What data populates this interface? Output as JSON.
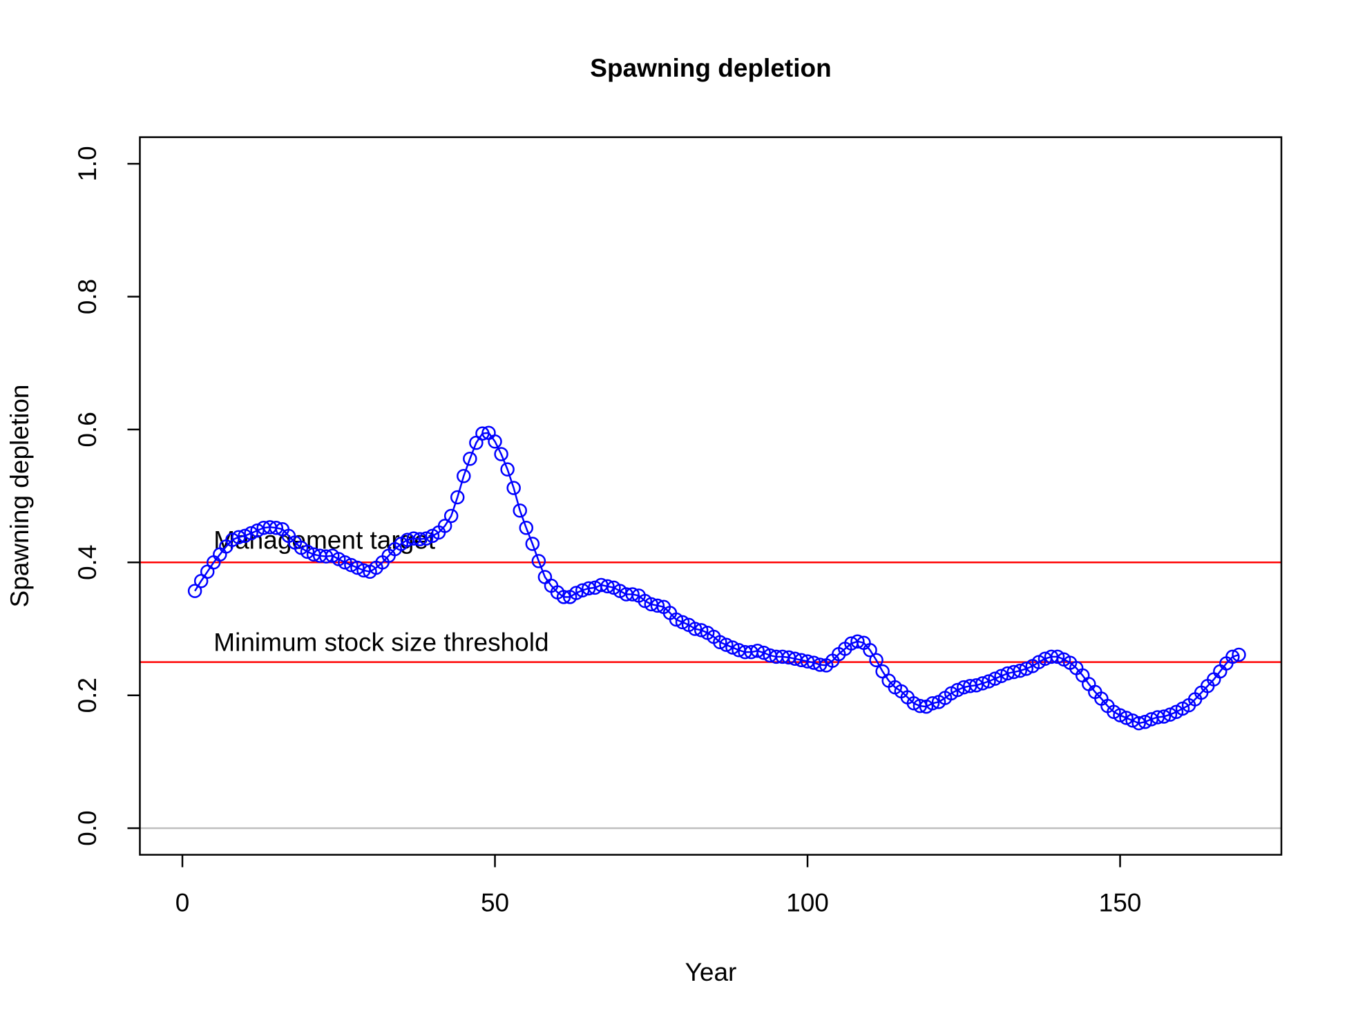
{
  "chart_data": {
    "type": "line",
    "title": "Spawning depletion",
    "xlabel": "Year",
    "ylabel": "Spawning depletion",
    "x": [
      2,
      3,
      4,
      5,
      6,
      7,
      8,
      9,
      10,
      11,
      12,
      13,
      14,
      15,
      16,
      17,
      18,
      19,
      20,
      21,
      22,
      23,
      24,
      25,
      26,
      27,
      28,
      29,
      30,
      31,
      32,
      33,
      34,
      35,
      36,
      37,
      38,
      39,
      40,
      41,
      42,
      43,
      44,
      45,
      46,
      47,
      48,
      49,
      50,
      51,
      52,
      53,
      54,
      55,
      56,
      57,
      58,
      59,
      60,
      61,
      62,
      63,
      64,
      65,
      66,
      67,
      68,
      69,
      70,
      71,
      72,
      73,
      74,
      75,
      76,
      77,
      78,
      79,
      80,
      81,
      82,
      83,
      84,
      85,
      86,
      87,
      88,
      89,
      90,
      91,
      92,
      93,
      94,
      95,
      96,
      97,
      98,
      99,
      100,
      101,
      102,
      103,
      104,
      105,
      106,
      107,
      108,
      109,
      110,
      111,
      112,
      113,
      114,
      115,
      116,
      117,
      118,
      119,
      120,
      121,
      122,
      123,
      124,
      125,
      126,
      127,
      128,
      129,
      130,
      131,
      132,
      133,
      134,
      135,
      136,
      137,
      138,
      139,
      140,
      141,
      142,
      143,
      144,
      145,
      146,
      147,
      148,
      149,
      150,
      151,
      152,
      153,
      154,
      155,
      156,
      157,
      158,
      159,
      160,
      161,
      162,
      163,
      164,
      165,
      166,
      167,
      168,
      169
    ],
    "series": [
      {
        "name": "Spawning depletion",
        "color": "#0000ff",
        "values": [
          0.357,
          0.372,
          0.386,
          0.4,
          0.412,
          0.424,
          0.434,
          0.438,
          0.44,
          0.444,
          0.448,
          0.452,
          0.453,
          0.452,
          0.45,
          0.44,
          0.43,
          0.422,
          0.416,
          0.412,
          0.41,
          0.409,
          0.41,
          0.405,
          0.4,
          0.396,
          0.392,
          0.388,
          0.386,
          0.392,
          0.4,
          0.41,
          0.42,
          0.428,
          0.434,
          0.436,
          0.435,
          0.436,
          0.44,
          0.445,
          0.455,
          0.47,
          0.498,
          0.53,
          0.556,
          0.58,
          0.594,
          0.595,
          0.582,
          0.563,
          0.54,
          0.512,
          0.478,
          0.452,
          0.428,
          0.402,
          0.378,
          0.365,
          0.355,
          0.348,
          0.348,
          0.354,
          0.358,
          0.361,
          0.362,
          0.366,
          0.364,
          0.362,
          0.357,
          0.352,
          0.352,
          0.35,
          0.342,
          0.337,
          0.335,
          0.333,
          0.324,
          0.314,
          0.31,
          0.306,
          0.3,
          0.298,
          0.294,
          0.288,
          0.28,
          0.276,
          0.272,
          0.268,
          0.265,
          0.265,
          0.267,
          0.264,
          0.26,
          0.258,
          0.258,
          0.257,
          0.255,
          0.253,
          0.251,
          0.249,
          0.246,
          0.245,
          0.252,
          0.262,
          0.27,
          0.278,
          0.281,
          0.279,
          0.268,
          0.253,
          0.236,
          0.222,
          0.212,
          0.206,
          0.197,
          0.188,
          0.184,
          0.183,
          0.188,
          0.19,
          0.196,
          0.203,
          0.208,
          0.212,
          0.214,
          0.215,
          0.218,
          0.221,
          0.225,
          0.229,
          0.233,
          0.235,
          0.237,
          0.24,
          0.244,
          0.25,
          0.255,
          0.258,
          0.258,
          0.254,
          0.249,
          0.241,
          0.23,
          0.217,
          0.205,
          0.195,
          0.184,
          0.175,
          0.17,
          0.166,
          0.162,
          0.158,
          0.16,
          0.164,
          0.167,
          0.168,
          0.171,
          0.175,
          0.18,
          0.185,
          0.194,
          0.204,
          0.214,
          0.224,
          0.236,
          0.248,
          0.258,
          0.261
        ]
      }
    ],
    "xlim": [
      -6.8,
      175.8
    ],
    "ylim": [
      -0.04,
      1.04
    ],
    "xticks": [
      0,
      50,
      100,
      150
    ],
    "yticks": [
      {
        "value": 0,
        "label": "0.0"
      },
      0.2,
      0.4,
      0.6,
      0.8,
      {
        "value": 1,
        "label": "1.0"
      }
    ],
    "hlines": [
      {
        "value": 0.4,
        "color": "#ff0000"
      },
      {
        "value": 0.25,
        "color": "#ff0000"
      },
      {
        "value": 0,
        "color": "#bebebe"
      }
    ],
    "annotations": [
      {
        "text": "Management target",
        "x": 5,
        "y": 0.431
      },
      {
        "text": "Minimum stock size threshold",
        "x": 5,
        "y": 0.277
      }
    ]
  }
}
